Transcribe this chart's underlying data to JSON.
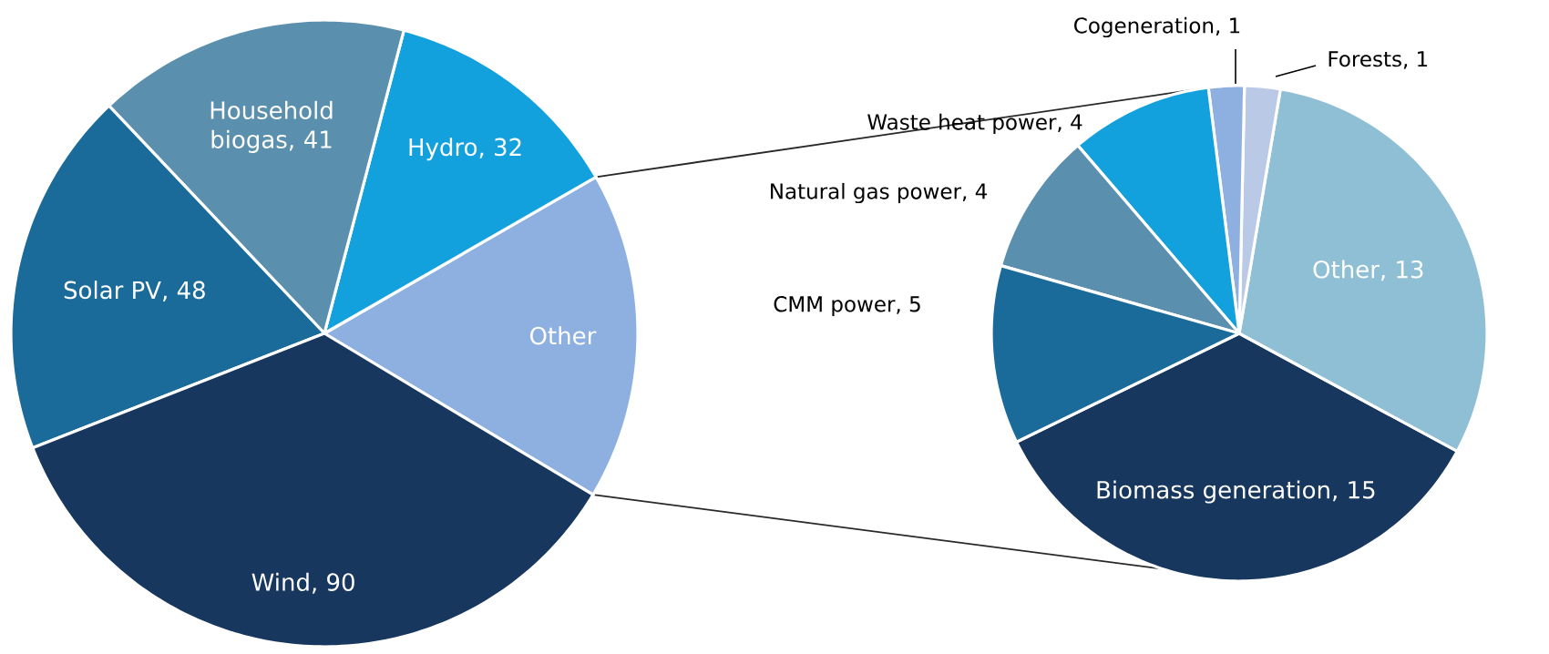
{
  "chart_data": [
    {
      "type": "pie",
      "categories": [
        "Other",
        "Hydro, 32",
        "Household biogas, 41",
        "Solar PV, 48",
        "Wind, 90"
      ],
      "values": [
        43,
        32,
        41,
        48,
        90
      ],
      "colors": [
        "#8db0e0",
        "#12a1dc",
        "#5b8fae",
        "#1a6a9a",
        "#17375e"
      ]
    },
    {
      "type": "pie",
      "categories": [
        "Biomass generation, 15",
        "Other, 13",
        "Forests, 1",
        "Cogeneration, 1",
        "Waste heat power, 4",
        "Natural gas power, 4",
        "CMM power, 5"
      ],
      "values": [
        15,
        13,
        1,
        1,
        4,
        4,
        5
      ],
      "colors": [
        "#17375e",
        "#8fbfd5",
        "#b9c9e6",
        "#8db0e0",
        "#12a1dc",
        "#5b8fae",
        "#1a6a9a"
      ]
    }
  ]
}
